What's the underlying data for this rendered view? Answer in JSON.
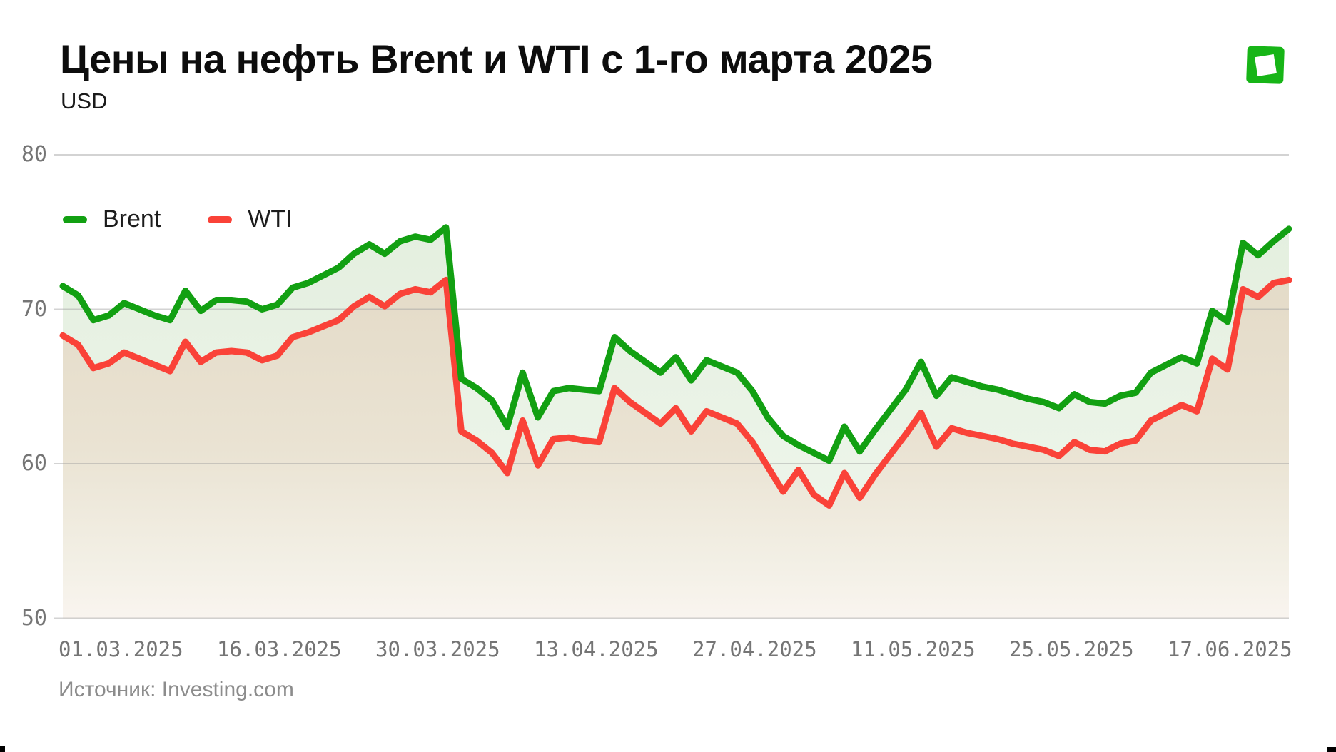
{
  "title": "Цены на нефть Brent и WTI с 1-го марта 2025",
  "subtitle": "USD",
  "source": "Источник: Investing.com",
  "logo_color": "#17B517",
  "chart_data": {
    "type": "line",
    "title": "Цены на нефть Brent и WTI с 1-го марта 2025",
    "ylabel": "USD",
    "ylim": [
      50,
      80
    ],
    "yticks": [
      80,
      70,
      60,
      50
    ],
    "xticklabels": [
      "01.03.2025",
      "16.03.2025",
      "30.03.2025",
      "13.04.2025",
      "27.04.2025",
      "11.05.2025",
      "25.05.2025",
      "17.06.2025"
    ],
    "grid": true,
    "legend_position": "top-left",
    "grid_color": "#9e9e9e",
    "band_fill_top": "#E4EFDF",
    "band_fill_bottom": "#EDF5EA",
    "lower_fill_stops": [
      "#E4DBC8",
      "#EAE3D3",
      "#F3F0E6",
      "#F9F4EF"
    ],
    "series": [
      {
        "name": "Brent",
        "color": "#12A012",
        "values": [
          71.5,
          70.9,
          69.3,
          69.6,
          70.4,
          70.0,
          69.6,
          69.3,
          71.2,
          69.9,
          70.6,
          70.6,
          70.5,
          70.0,
          70.3,
          71.4,
          71.7,
          72.2,
          72.7,
          73.6,
          74.2,
          73.6,
          74.4,
          74.7,
          74.5,
          75.3,
          65.5,
          64.9,
          64.1,
          62.4,
          65.9,
          63.0,
          64.7,
          64.9,
          64.8,
          64.7,
          68.2,
          67.3,
          66.6,
          65.9,
          66.9,
          65.4,
          66.7,
          66.3,
          65.9,
          64.7,
          63.0,
          61.8,
          61.2,
          60.7,
          60.2,
          62.4,
          60.8,
          62.2,
          63.5,
          64.8,
          66.6,
          64.4,
          65.6,
          65.3,
          65.0,
          64.8,
          64.5,
          64.2,
          64.0,
          63.6,
          64.5,
          64.0,
          63.9,
          64.4,
          64.6,
          65.9,
          66.4,
          66.9,
          66.5,
          69.9,
          69.2,
          74.3,
          73.5,
          74.4,
          75.2
        ]
      },
      {
        "name": "WTI",
        "color": "#FA4238",
        "values": [
          68.3,
          67.7,
          66.2,
          66.5,
          67.2,
          66.8,
          66.4,
          66.0,
          67.9,
          66.6,
          67.2,
          67.3,
          67.2,
          66.7,
          67.0,
          68.2,
          68.5,
          68.9,
          69.3,
          70.2,
          70.8,
          70.2,
          71.0,
          71.3,
          71.1,
          71.9,
          62.1,
          61.5,
          60.7,
          59.4,
          62.8,
          59.9,
          61.6,
          61.7,
          61.5,
          61.4,
          64.9,
          64.0,
          63.3,
          62.6,
          63.6,
          62.1,
          63.4,
          63.0,
          62.6,
          61.4,
          59.8,
          58.2,
          59.6,
          58.0,
          57.3,
          59.4,
          57.8,
          59.3,
          60.6,
          61.9,
          63.3,
          61.1,
          62.3,
          62.0,
          61.8,
          61.6,
          61.3,
          61.1,
          60.9,
          60.5,
          61.4,
          60.9,
          60.8,
          61.3,
          61.5,
          62.8,
          63.3,
          63.8,
          63.4,
          66.8,
          66.1,
          71.3,
          70.8,
          71.7,
          71.9
        ]
      }
    ]
  }
}
